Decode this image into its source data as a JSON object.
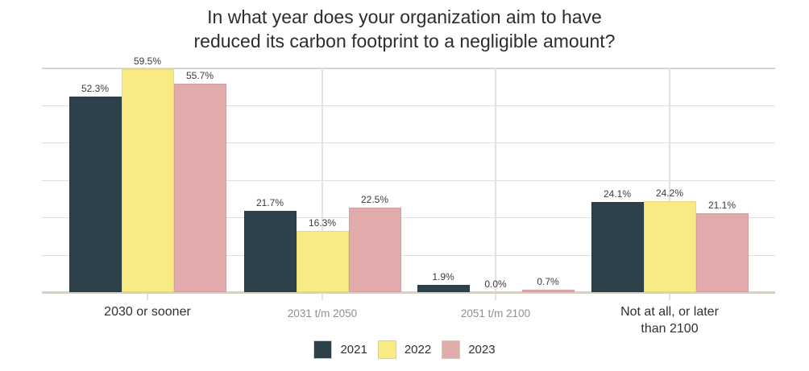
{
  "title_lines": [
    "In what year does your organization aim to have",
    "reduced its carbon footprint to a negligible amount?"
  ],
  "chart_data": {
    "type": "bar",
    "title": "In what year does your organization aim to have reduced its carbon footprint to a negligible amount?",
    "categories": [
      "2030 or sooner",
      "2031 t/m 2050",
      "2051 t/m 2100",
      "Not at all, or later than 2100"
    ],
    "category_label_lines": [
      [
        "2030 or sooner"
      ],
      [
        "2031 t/m 2050"
      ],
      [
        "2051 t/m 2100"
      ],
      [
        "Not at all, or later",
        "than 2100"
      ]
    ],
    "muted_category_indexes": [
      1,
      2
    ],
    "series": [
      {
        "name": "2021",
        "color": "#2e4049",
        "values": [
          52.3,
          21.7,
          1.9,
          24.1
        ]
      },
      {
        "name": "2022",
        "color": "#f8ea85",
        "values": [
          59.5,
          16.3,
          0.0,
          24.2
        ]
      },
      {
        "name": "2023",
        "color": "#e2abab",
        "values": [
          55.7,
          22.5,
          0.7,
          21.1
        ]
      }
    ],
    "value_suffix": "%",
    "value_decimals": 1,
    "ylim": [
      0,
      60
    ],
    "gridline_step": 10,
    "grid": true,
    "legend_position": "bottom",
    "colors": {
      "grid_horizontal": "#dedede",
      "grid_vertical": "#e8dfdd",
      "axis_line": "#d5d0c8",
      "value_label": "#3c3c3c",
      "category_dark": "#313131",
      "category_muted": "#909090",
      "title": "#2d2d2d",
      "legend_text": "#2f2f2f",
      "legend_swatch_border": "#d2cdc0",
      "background": "#ffffff"
    }
  }
}
